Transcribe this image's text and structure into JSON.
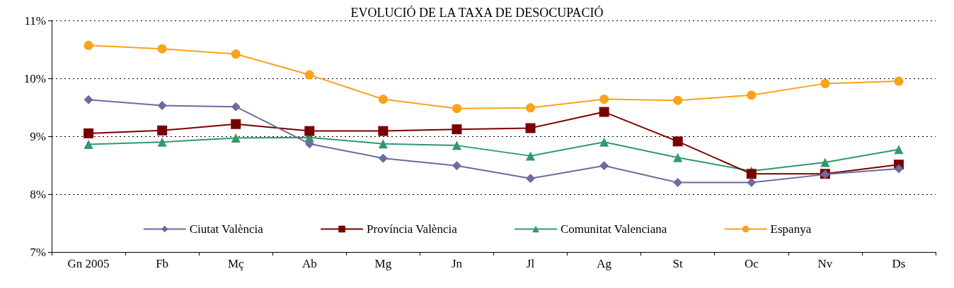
{
  "chart_data": {
    "type": "line",
    "title": "EVOLUCIÓ DE LA TAXA DE DESOCUPACIÓ",
    "categories": [
      "Gn 2005",
      "Fb",
      "Mç",
      "Ab",
      "Mg",
      "Jn",
      "Jl",
      "Ag",
      "St",
      "Oc",
      "Nv",
      "Ds"
    ],
    "series": [
      {
        "name": "Ciutat València",
        "color": "#6b6b9e",
        "marker": "diamond",
        "values": [
          9.63,
          9.53,
          9.51,
          8.87,
          8.62,
          8.49,
          8.27,
          8.49,
          8.2,
          8.2,
          8.34,
          8.44
        ]
      },
      {
        "name": "Província València",
        "color": "#7a0000",
        "marker": "square",
        "values": [
          9.05,
          9.1,
          9.21,
          9.09,
          9.09,
          9.12,
          9.14,
          9.42,
          8.91,
          8.35,
          8.35,
          8.51
        ]
      },
      {
        "name": "Comunitat Valenciana",
        "color": "#2e9a6a",
        "marker": "triangle",
        "values": [
          8.86,
          8.9,
          8.97,
          8.98,
          8.87,
          8.84,
          8.66,
          8.9,
          8.63,
          8.4,
          8.55,
          8.77
        ]
      },
      {
        "name": "Espanya",
        "color": "#f9a21b",
        "marker": "circle",
        "values": [
          10.57,
          10.51,
          10.42,
          10.06,
          9.64,
          9.48,
          9.49,
          9.64,
          9.62,
          9.71,
          9.91,
          9.95
        ]
      }
    ],
    "ylim": [
      7,
      11
    ],
    "yticks": [
      {
        "value": 7,
        "label": "7%"
      },
      {
        "value": 8,
        "label": "8%"
      },
      {
        "value": 9,
        "label": "9%"
      },
      {
        "value": 10,
        "label": "10%"
      },
      {
        "value": 11,
        "label": "11%"
      }
    ],
    "grid": "y",
    "legend": "bottom"
  }
}
